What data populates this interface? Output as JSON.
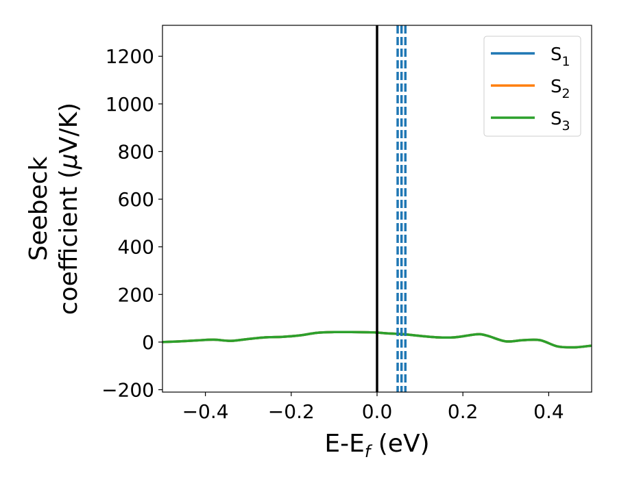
{
  "chart_data": {
    "type": "line",
    "title": "",
    "xlabel": {
      "main": "E-E",
      "sub": "f",
      "unit": " (eV)"
    },
    "ylabel": {
      "line1": "Seebeck",
      "line2": "coefficient  (",
      "mu": "μ",
      "unit": "V/K)"
    },
    "xlim": [
      -0.5,
      0.5
    ],
    "ylim": [
      -210,
      1330
    ],
    "xticks": [
      -0.4,
      -0.2,
      0.0,
      0.2,
      0.4
    ],
    "xtick_labels": [
      "−0.4",
      "−0.2",
      "0.0",
      "0.2",
      "0.4"
    ],
    "yticks": [
      -200,
      0,
      200,
      400,
      600,
      800,
      1000,
      1200
    ],
    "ytick_labels": [
      "−200",
      "0",
      "200",
      "400",
      "600",
      "800",
      "1000",
      "1200"
    ],
    "grid": false,
    "legend_position": "top-right",
    "fermi_level_x": 0.0,
    "dashed_vlines_x": [
      0.048,
      0.057,
      0.066
    ],
    "dashed_vline_color": "#1f77b4",
    "x": [
      -0.5,
      -0.46,
      -0.42,
      -0.38,
      -0.34,
      -0.3,
      -0.26,
      -0.22,
      -0.18,
      -0.14,
      -0.1,
      -0.06,
      -0.02,
      0.0,
      0.02,
      0.06,
      0.1,
      0.14,
      0.18,
      0.22,
      0.24,
      0.26,
      0.3,
      0.34,
      0.38,
      0.42,
      0.46,
      0.5
    ],
    "series": [
      {
        "name": "S",
        "sub": "1",
        "color": "#1f77b4",
        "values": [
          0,
          3,
          7,
          10,
          5,
          13,
          20,
          22,
          28,
          39,
          42,
          42,
          41,
          40,
          37,
          33,
          26,
          20,
          20,
          30,
          33,
          25,
          3,
          8,
          8,
          -18,
          -22,
          -15
        ]
      },
      {
        "name": "S",
        "sub": "2",
        "color": "#ff7f0e",
        "values": [
          0,
          3,
          7,
          10,
          5,
          13,
          20,
          22,
          28,
          39,
          42,
          42,
          41,
          40,
          37,
          33,
          26,
          20,
          20,
          30,
          33,
          25,
          3,
          8,
          8,
          -18,
          -22,
          -15
        ]
      },
      {
        "name": "S",
        "sub": "3",
        "color": "#2ca02c",
        "values": [
          0,
          3,
          7,
          10,
          5,
          13,
          20,
          22,
          28,
          39,
          42,
          42,
          41,
          40,
          37,
          33,
          26,
          20,
          20,
          30,
          33,
          25,
          3,
          8,
          8,
          -18,
          -22,
          -15
        ]
      }
    ]
  }
}
